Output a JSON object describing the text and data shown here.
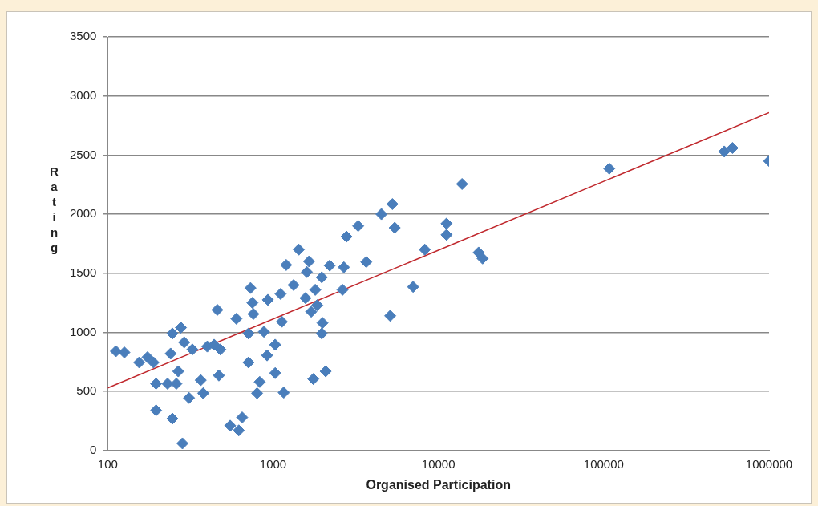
{
  "chart_data": {
    "type": "scatter",
    "xlabel": "Organised Participation",
    "ylabel": "Rating",
    "log": "x",
    "xlim": [
      100,
      1000000
    ],
    "xticks": [
      100,
      1000,
      10000,
      100000,
      1000000
    ],
    "ylim": [
      0,
      3500
    ],
    "yticks": [
      0,
      500,
      1000,
      1500,
      2000,
      2500,
      3000,
      3500
    ],
    "grid": "y",
    "marker": "diamond",
    "series": [
      {
        "color": "#4a7ebb",
        "x": [
          112,
          126,
          155,
          174,
          189,
          196,
          196,
          230,
          246,
          240,
          246,
          260,
          267,
          277,
          283,
          290,
          310,
          325,
          365,
          378,
          400,
          440,
          460,
          470,
          480,
          550,
          600,
          620,
          650,
          710,
          730,
          710,
          750,
          760,
          800,
          830,
          880,
          920,
          930,
          1030,
          1030,
          1110,
          1130,
          1160,
          1200,
          1330,
          1430,
          1570,
          1600,
          1650,
          1700,
          1800,
          1750,
          1850,
          1970,
          1990,
          1970,
          2080,
          2200,
          2630,
          2680,
          2780,
          3270,
          3660,
          4520,
          5270,
          5440,
          5110,
          7030,
          8270,
          11200,
          11200,
          13900,
          17500,
          18500,
          108000,
          536000,
          601000,
          1000000
        ],
        "values": [
          840,
          830,
          745,
          790,
          745,
          565,
          340,
          565,
          990,
          820,
          270,
          565,
          670,
          1040,
          60,
          915,
          445,
          855,
          595,
          485,
          880,
          895,
          1190,
          635,
          855,
          210,
          1115,
          170,
          280,
          990,
          1375,
          745,
          1250,
          1155,
          485,
          580,
          1005,
          805,
          1275,
          895,
          655,
          1325,
          1090,
          490,
          1570,
          1400,
          1700,
          1290,
          1510,
          1600,
          1175,
          1360,
          605,
          1230,
          1465,
          1080,
          990,
          670,
          1565,
          1360,
          1550,
          1810,
          1900,
          1595,
          2000,
          2085,
          1885,
          1140,
          1385,
          1700,
          1920,
          1825,
          2255,
          1675,
          1625,
          2385,
          2530,
          2560,
          2450
        ]
      },
      {
        "type": "line",
        "color": "#c0282d",
        "marker": "none",
        "x": [
          100,
          1000000
        ],
        "values": [
          530,
          2860
        ]
      }
    ]
  }
}
